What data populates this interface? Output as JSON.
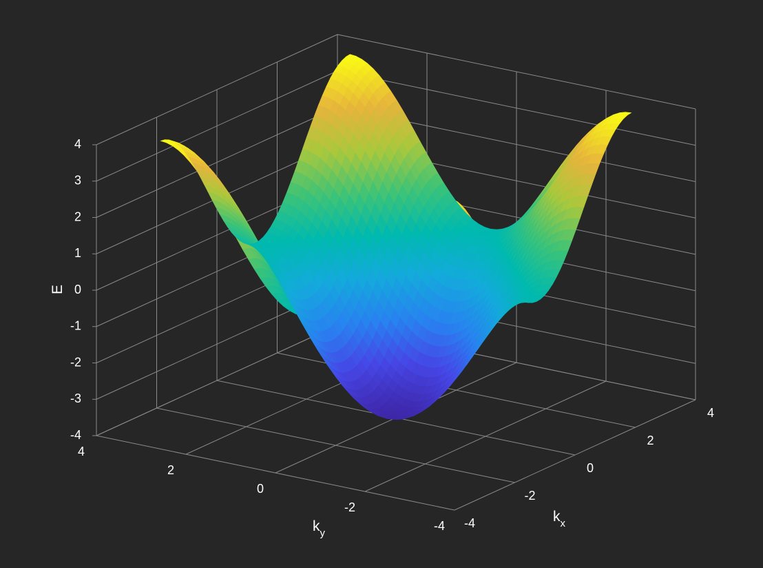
{
  "chart_data": {
    "type": "surface",
    "title": "",
    "function": "E = -2*cos(kx) - 2*cos(ky)",
    "xlabel": "k",
    "xlabel_sub": "x",
    "ylabel": "k",
    "ylabel_sub": "y",
    "zlabel": "E",
    "xlim": [
      -4,
      4
    ],
    "ylim": [
      -4,
      4
    ],
    "zlim": [
      -4,
      4
    ],
    "surface_domain": [
      -3.14159,
      3.14159
    ],
    "x_ticks": [
      "-4",
      "-2",
      "0",
      "2",
      "4"
    ],
    "y_ticks": [
      "4",
      "2",
      "0",
      "-2",
      "-4"
    ],
    "z_ticks": [
      "4",
      "3",
      "2",
      "1",
      "0",
      "-1",
      "-2",
      "-3",
      "-4"
    ],
    "grid": true,
    "colormap": "parula",
    "colors": {
      "background": "#262626",
      "grid": "#8a8a8a",
      "text": "#ffffff"
    }
  }
}
